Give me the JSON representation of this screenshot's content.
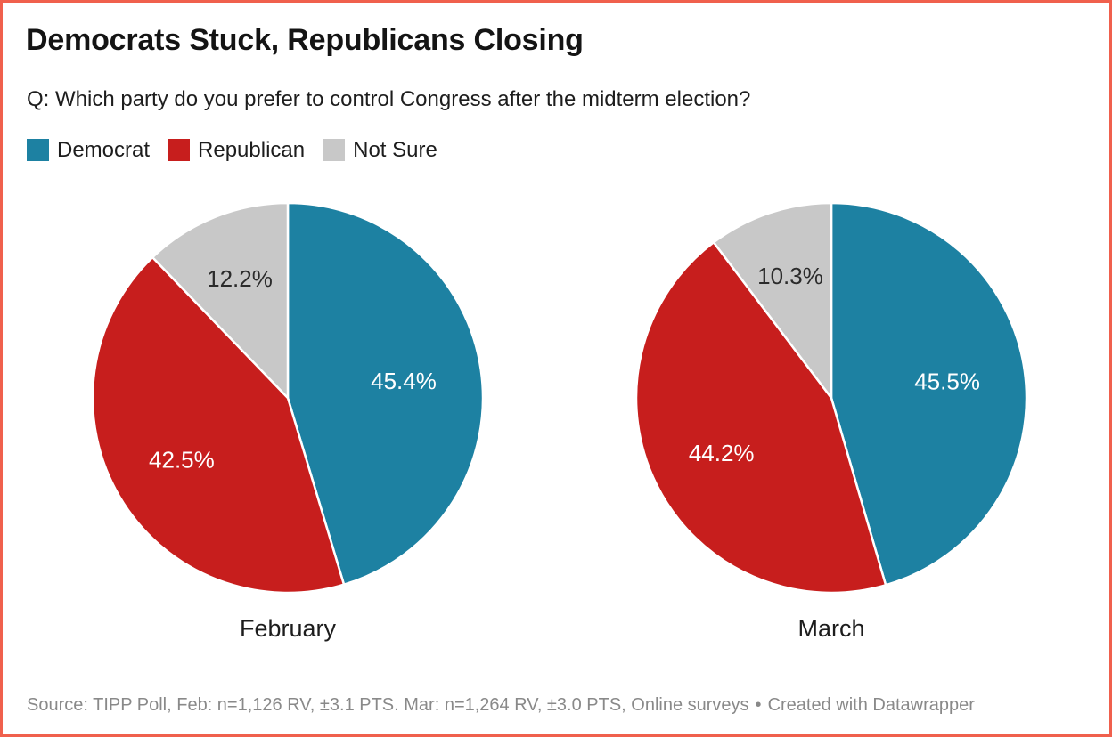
{
  "frame": {
    "border_color": "#f0604d",
    "background_color": "#ffffff"
  },
  "chart_data": {
    "type": "pie",
    "title": "Democrats Stuck, Republicans Closing",
    "subtitle": "Q: Which party do you prefer to control Congress after the midterm election?",
    "legend_position": "top-left",
    "legend": [
      {
        "label": "Democrat",
        "color": "#1d81a2"
      },
      {
        "label": "Republican",
        "color": "#c71e1d"
      },
      {
        "label": "Not Sure",
        "color": "#c8c8c8"
      }
    ],
    "slice_label_colors": [
      "#ffffff",
      "#ffffff",
      "#2b2b2b"
    ],
    "start_angle_deg": 0,
    "direction": "clockwise",
    "charts": [
      {
        "label": "February",
        "categories": [
          "Democrat",
          "Republican",
          "Not Sure"
        ],
        "values": [
          45.4,
          42.5,
          12.2
        ],
        "value_labels": [
          "45.4%",
          "42.5%",
          "12.2%"
        ]
      },
      {
        "label": "March",
        "categories": [
          "Democrat",
          "Republican",
          "Not Sure"
        ],
        "values": [
          45.5,
          44.2,
          10.3
        ],
        "value_labels": [
          "45.5%",
          "44.2%",
          "10.3%"
        ]
      }
    ]
  },
  "footer": {
    "source": "Source: TIPP Poll, Feb: n=1,126 RV, ±3.1 PTS. Mar: n=1,264 RV, ±3.0 PTS, Online surveys",
    "separator": "•",
    "attribution": "Created with Datawrapper"
  }
}
